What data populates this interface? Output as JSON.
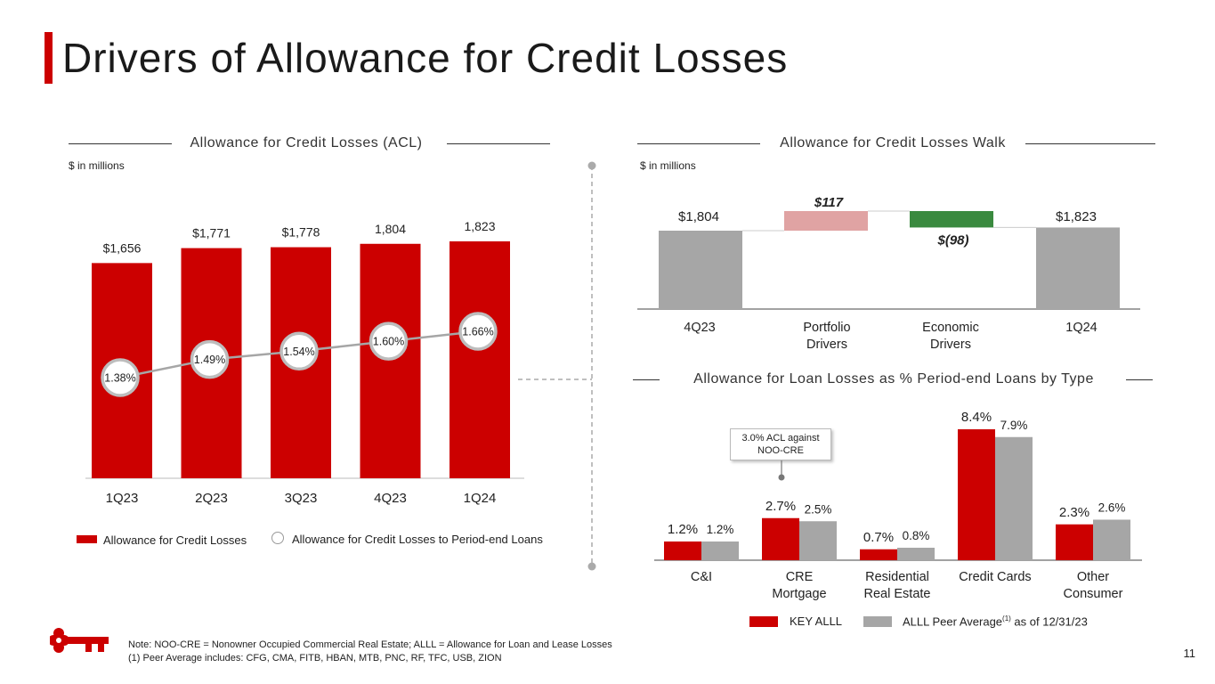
{
  "page": {
    "title": "Drivers of Allowance for Credit Losses",
    "page_number": "11",
    "notes": [
      "Note: NOO-CRE = Nonowner Occupied Commercial Real Estate; ALLL = Allowance for Loan and Lease Losses",
      "(1) Peer Average includes: CFG, CMA, FITB, HBAN, MTB, PNC, RF, TFC, USB, ZION"
    ]
  },
  "acl": {
    "title": "Allowance for Credit Losses (ACL)",
    "units": "$ in millions",
    "legend_bar": "Allowance for Credit Losses",
    "legend_line": "Allowance for Credit Losses to Period-end Loans"
  },
  "walk": {
    "title": "Allowance for Credit Losses Walk",
    "units": "$ in millions"
  },
  "alll": {
    "title": "Allowance for Loan Losses as % Period-end Loans by Type",
    "callout": [
      "3.0% ACL against",
      "NOO-CRE"
    ],
    "legend_key": "KEY ALLL",
    "legend_peer_prefix": "ALLL Peer Average",
    "legend_peer_sup": "(1)",
    "legend_peer_suffix": " as of 12/31/23"
  },
  "colors": {
    "key_red": "#cc0000",
    "gray": "#a6a6a6",
    "pink": "#e0a3a3",
    "green": "#3a8a3f"
  },
  "chart_data": [
    {
      "type": "bar",
      "title": "Allowance for Credit Losses (ACL)",
      "categories": [
        "1Q23",
        "2Q23",
        "3Q23",
        "4Q23",
        "1Q24"
      ],
      "series": [
        {
          "name": "Allowance for Credit Losses",
          "values": [
            1656,
            1771,
            1778,
            1804,
            1823
          ],
          "labels": [
            "$1,656",
            "$1,771",
            "$1,778",
            "1,804",
            "1,823"
          ]
        },
        {
          "name": "Allowance for Credit Losses to Period-end Loans",
          "type": "line",
          "values": [
            1.38,
            1.49,
            1.54,
            1.6,
            1.66
          ],
          "labels": [
            "1.38%",
            "1.49%",
            "1.54%",
            "1.60%",
            "1.66%"
          ]
        }
      ]
    },
    {
      "type": "bar",
      "title": "Allowance for Credit Losses Walk",
      "categories": [
        "4Q23",
        "Portfolio Drivers",
        "Economic Drivers",
        "1Q24"
      ],
      "values": [
        1804,
        117,
        -98,
        1823
      ],
      "labels": [
        "$1,804",
        "$117",
        "$(98)",
        "$1,823"
      ]
    },
    {
      "type": "bar",
      "title": "Allowance for Loan Losses as % Period-end Loans by Type",
      "categories": [
        "C&I",
        "CRE Mortgage",
        "Residential Real Estate",
        "Credit Cards",
        "Other Consumer"
      ],
      "series": [
        {
          "name": "KEY ALLL",
          "values": [
            1.2,
            2.7,
            0.7,
            8.4,
            2.3
          ],
          "labels": [
            "1.2%",
            "2.7%",
            "0.7%",
            "8.4%",
            "2.3%"
          ]
        },
        {
          "name": "ALLL Peer Average(1) as of 12/31/23",
          "values": [
            1.2,
            2.5,
            0.8,
            7.9,
            2.6
          ],
          "labels": [
            "1.2%",
            "2.5%",
            "0.8%",
            "7.9%",
            "2.6%"
          ]
        }
      ]
    }
  ]
}
